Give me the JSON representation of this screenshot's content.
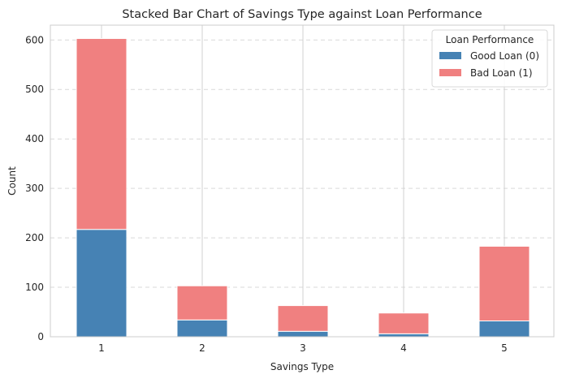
{
  "chart_data": {
    "type": "bar",
    "stacked": true,
    "title": "Stacked Bar Chart of Savings Type against Loan Performance",
    "xlabel": "Savings Type",
    "ylabel": "Count",
    "categories": [
      "1",
      "2",
      "3",
      "4",
      "5"
    ],
    "ylim": [
      0,
      630
    ],
    "yticks": [
      0,
      100,
      200,
      300,
      400,
      500,
      600
    ],
    "grid": true,
    "legend": {
      "title": "Loan Performance",
      "placement": "top-right"
    },
    "series": [
      {
        "name": "Good Loan (0)",
        "color": "#4682b4",
        "values": [
          217,
          34,
          11,
          6,
          32
        ]
      },
      {
        "name": "Bad Loan (1)",
        "color": "#f08080",
        "values": [
          386,
          69,
          52,
          42,
          151
        ]
      }
    ]
  }
}
